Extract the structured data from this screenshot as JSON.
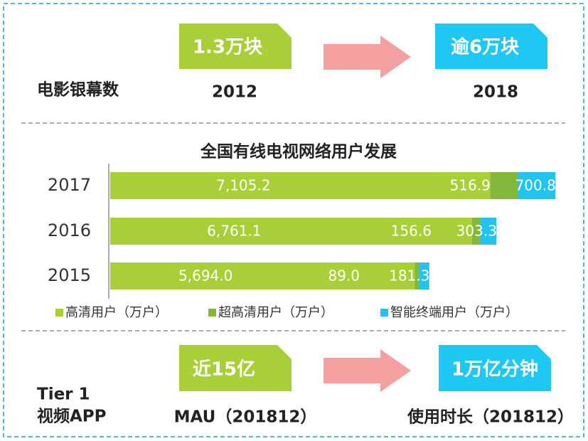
{
  "top": {
    "label": "电影银幕数",
    "from": {
      "value": "1.3万块",
      "year": "2012"
    },
    "to": {
      "value": "逾6万块",
      "year": "2018"
    }
  },
  "chart_data": {
    "type": "bar",
    "orientation": "horizontal",
    "stacked": true,
    "title": "全国有线电视网络用户发展",
    "categories": [
      "2017",
      "2016",
      "2015"
    ],
    "xlim": [
      0,
      8400
    ],
    "series": [
      {
        "name": "高清用户（万户）",
        "color": "#a9cf38",
        "values": [
          7105.2,
          6761.1,
          5694.0
        ],
        "value_labels": [
          "7,105.2",
          "6,761.1",
          "5,694.0"
        ]
      },
      {
        "name": "超高清用户（万户）",
        "color": "#84b83a",
        "values": [
          516.9,
          156.6,
          89.0
        ],
        "value_labels": [
          "516.9",
          "156.6",
          "89.0"
        ]
      },
      {
        "name": "智能终端用户（万户）",
        "color": "#22c4ef",
        "values": [
          700.8,
          303.3,
          181.3
        ],
        "value_labels": [
          "700.8",
          "303.3",
          "181.3"
        ]
      }
    ],
    "legend": "bottom"
  },
  "bottom": {
    "label": [
      "Tier 1",
      "视频APP"
    ],
    "from": {
      "value": "近15亿",
      "caption": "MAU（201812）"
    },
    "to": {
      "value": "1万亿分钟",
      "caption": "使用时长（201812）"
    }
  }
}
